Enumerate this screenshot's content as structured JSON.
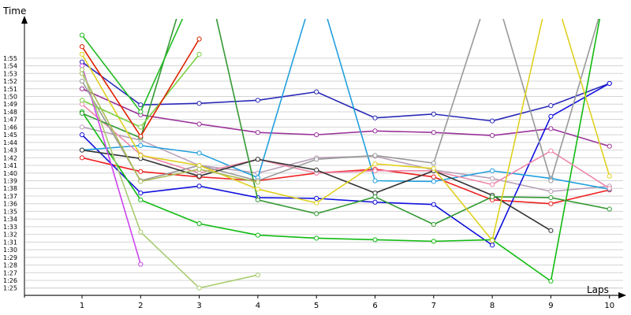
{
  "chart_data": {
    "type": "line",
    "xlabel": "Laps",
    "ylabel": "Time",
    "x": [
      1,
      2,
      3,
      4,
      5,
      6,
      7,
      8,
      9,
      10
    ],
    "ytick_labels": [
      "1:25",
      "1:26",
      "1:27",
      "1:28",
      "1:29",
      "1:30",
      "1:31",
      "1:32",
      "1:33",
      "1:34",
      "1:35",
      "1:36",
      "1:37",
      "1:38",
      "1:39",
      "1:40",
      "1:41",
      "1:42",
      "1:43",
      "1:44",
      "1:45",
      "1:46",
      "1:47",
      "1:48",
      "1:49",
      "1:50",
      "1:51",
      "1:52",
      "1:53",
      "1:54",
      "1:55"
    ],
    "ylim_seconds": [
      84,
      118
    ],
    "grid": true,
    "series": [
      {
        "color": "#2a2ab8",
        "values": [
          114.5,
          108.9,
          109.1,
          109.5,
          110.6,
          107.2,
          107.7,
          106.8,
          108.8,
          111.7
        ]
      },
      {
        "color": "#993399",
        "values": [
          111.0,
          107.6,
          106.4,
          105.3,
          105.0,
          105.5,
          105.3,
          104.9,
          105.8,
          103.5
        ]
      },
      {
        "color": "#b8a0b8",
        "values": [
          106.0,
          104.3,
          101.0,
          100.0,
          102.0,
          102.2,
          100.4,
          99.3,
          97.6,
          98.3
        ]
      },
      {
        "color": "#ee2222",
        "values": [
          102.0,
          100.2,
          99.5,
          99.0,
          100.0,
          100.5,
          99.5,
          96.5,
          96.0,
          97.8
        ]
      },
      {
        "color": "#1111dd",
        "values": [
          105.0,
          97.4,
          98.3,
          96.8,
          96.7,
          96.2,
          95.9,
          90.6,
          107.4,
          111.7
        ]
      },
      {
        "color": "#11bb11",
        "values": [
          108.0,
          96.5,
          93.4,
          91.9,
          91.5,
          91.3,
          91.1,
          91.3,
          85.9,
          127.0
        ]
      },
      {
        "color": "#22a0dd",
        "values": [
          103.0,
          103.6,
          102.6,
          99.4,
          125.0,
          99.0,
          98.9,
          100.3,
          99.3,
          97.9
        ]
      },
      {
        "color": "#ee88aa",
        "values": [
          109.0,
          102.4,
          100.0,
          101.8,
          100.0,
          100.3,
          100.3,
          98.5,
          102.9,
          98.0
        ]
      },
      {
        "color": "#999999",
        "values": [
          112.0,
          99.0,
          101.0,
          99.0,
          101.8,
          102.3,
          101.3,
          125.0,
          99.0,
          125.0
        ]
      },
      {
        "color": "#333333",
        "values": [
          103.0,
          101.9,
          99.6,
          101.8,
          100.4,
          97.4,
          100.3,
          97.1,
          92.5,
          null
        ]
      },
      {
        "color": "#339933",
        "values": [
          107.8,
          104.6,
          130.0,
          96.5,
          94.7,
          96.9,
          93.3,
          96.9,
          96.8,
          95.3
        ]
      },
      {
        "color": "#e0d020",
        "values": [
          115.5,
          102.3,
          101.0,
          97.9,
          96.1,
          101.2,
          100.6,
          91.2,
          125.0,
          99.6
        ]
      },
      {
        "color": "#aabb55",
        "values": [
          113.0,
          98.9,
          100.5,
          98.8,
          null,
          null,
          null,
          null,
          null,
          null
        ]
      },
      {
        "color": "#22bb22",
        "values": [
          118.0,
          108.0,
          125.0,
          125.0,
          null,
          null,
          null,
          null,
          null,
          null
        ]
      },
      {
        "color": "#7ad040",
        "values": [
          109.5,
          106.0,
          115.5,
          null,
          null,
          null,
          null,
          null,
          null,
          null
        ]
      },
      {
        "color": "#dd2200",
        "values": [
          116.5,
          104.8,
          117.5,
          null,
          null,
          null,
          null,
          null,
          null,
          null
        ]
      },
      {
        "color": "#cc44ee",
        "values": [
          114.0,
          88.1,
          null,
          null,
          null,
          null,
          null,
          null,
          null,
          null
        ]
      },
      {
        "color": "#a8cc70",
        "values": [
          113.5,
          92.3,
          85.0,
          86.7,
          null,
          null,
          null,
          null,
          null,
          null
        ]
      }
    ]
  }
}
